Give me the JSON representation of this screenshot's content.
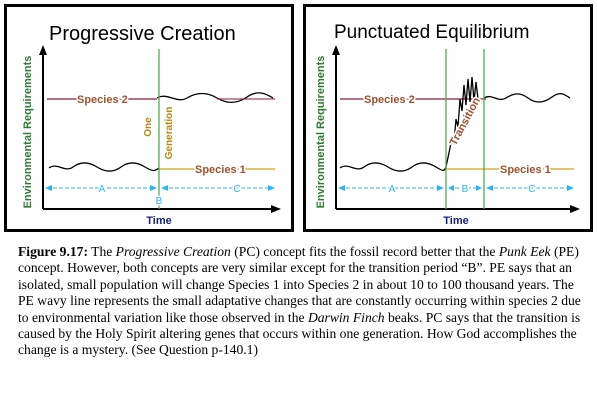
{
  "panels": [
    {
      "title": "Progressive Creation",
      "ylabel": "Environmental Requirements",
      "xlabel": "Time",
      "species_top": "Species 2",
      "species_bottom": "Species 1",
      "vertical_label_1": "One",
      "vertical_label_2": "Generation",
      "period_a": "A",
      "period_b": "B",
      "period_c": "C"
    },
    {
      "title": "Punctuated Equilibrium",
      "ylabel": "Environmental Requirements",
      "xlabel": "Time",
      "species_top": "Species 2",
      "species_bottom": "Species 1",
      "transition_label": "Transition",
      "period_a": "A",
      "period_b": "B",
      "period_c": "C"
    }
  ],
  "caption": {
    "fig_label": "Figure 9.17:",
    "t1": " The ",
    "pc_name": "Progressive Creation",
    "t2": " (PC) concept fits the fossil record better that the ",
    "pe_name": "Punk Eek",
    "t3": " (PE) concept.  However, both concepts are very similar except for the transition period “B”.  PE says that an isolated, small population will change Species 1 into Species 2 in about 10 to 100 thousand years.  The PE wavy line represents the small adaptative changes that are constantly occurring within species 2 due to environmental variation like those observed in the ",
    "finch": "Darwin Finch",
    "t4": " beaks.  PC says that the transition is caused by the Holy Spirit altering genes that occurs within one generation.  How God accomplishes the change is a mystery.  (See Question p-140.1)"
  },
  "colors": {
    "axis_green": "#2e7d32",
    "species2_line": "#8b1a3a",
    "species1_line": "#d4a017",
    "species_label": "#a0522d",
    "generation_label": "#b8860b",
    "divider_green": "#4caf50",
    "period_arrow": "#29b6f6",
    "time_label": "#1a237e",
    "transition_label": "#a0522d"
  }
}
